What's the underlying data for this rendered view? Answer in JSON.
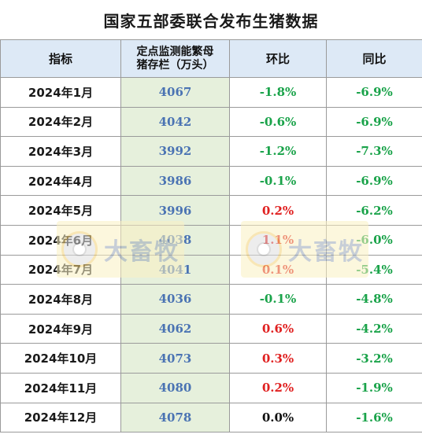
{
  "title": "国家五部委联合发布生猪数据",
  "headers": {
    "indicator": "指标",
    "stock_line1": "定点监测能繁母",
    "stock_line2": "猪存栏（万头）",
    "mom": "环比",
    "yoy": "同比"
  },
  "rows": [
    {
      "month": "2024年1月",
      "stock": "4067",
      "mom": "-1.8%",
      "yoy": "-6.9%"
    },
    {
      "month": "2024年2月",
      "stock": "4042",
      "mom": "-0.6%",
      "yoy": "-6.9%"
    },
    {
      "month": "2024年3月",
      "stock": "3992",
      "mom": "-1.2%",
      "yoy": "-7.3%"
    },
    {
      "month": "2024年4月",
      "stock": "3986",
      "mom": "-0.1%",
      "yoy": "-6.9%"
    },
    {
      "month": "2024年5月",
      "stock": "3996",
      "mom": "0.2%",
      "yoy": "-6.2%"
    },
    {
      "month": "2024年6月",
      "stock": "4038",
      "mom": "1.1%",
      "yoy": "-6.0%"
    },
    {
      "month": "2024年7月",
      "stock": "4041",
      "mom": "0.1%",
      "yoy": "-5.4%"
    },
    {
      "month": "2024年8月",
      "stock": "4036",
      "mom": "-0.1%",
      "yoy": "-4.8%"
    },
    {
      "month": "2024年9月",
      "stock": "4062",
      "mom": "0.6%",
      "yoy": "-4.2%"
    },
    {
      "month": "2024年10月",
      "stock": "4073",
      "mom": "0.3%",
      "yoy": "-3.2%"
    },
    {
      "month": "2024年11月",
      "stock": "4080",
      "mom": "0.2%",
      "yoy": "-1.9%"
    },
    {
      "month": "2024年12月",
      "stock": "4078",
      "mom": "0.0%",
      "yoy": "-1.6%"
    }
  ],
  "watermark": {
    "brand": "大畜牧"
  },
  "colors": {
    "header_bg": "#dde9f6",
    "stock_bg": "#e6f0dc",
    "stock_text": "#4a73b3",
    "negative": "#1aa34a",
    "positive": "#e02020",
    "zero": "#111111"
  }
}
